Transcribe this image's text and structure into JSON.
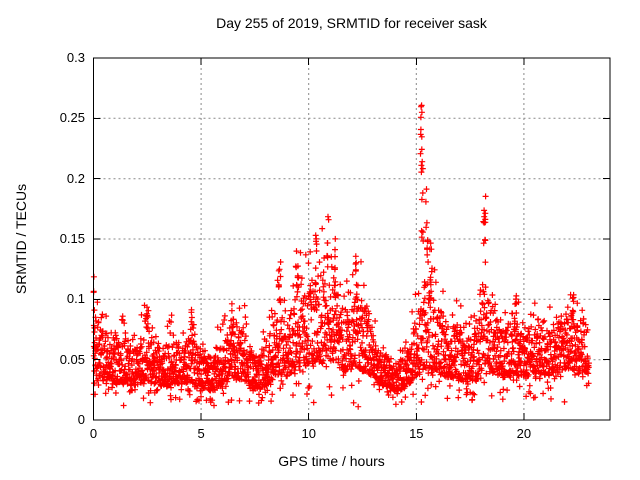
{
  "window": {
    "background": "#ffffff"
  },
  "chart_data": {
    "type": "scatter",
    "title": "Day 255 of 2019, SRMTID for receiver sask",
    "xlabel": "GPS time / hours",
    "ylabel": "SRMTID / TECUs",
    "series_name": "SRMTID",
    "xlim": [
      0,
      24
    ],
    "ylim": [
      0,
      0.3
    ],
    "xticks": {
      "values": [
        0,
        5,
        10,
        15,
        20
      ],
      "labels": [
        "0",
        "5",
        "10",
        "15",
        "20"
      ]
    },
    "yticks": {
      "values": [
        0,
        0.05,
        0.1,
        0.15,
        0.2,
        0.25,
        0.3
      ],
      "labels": [
        "0",
        "0.05",
        "0.1",
        "0.15",
        "0.2",
        "0.25",
        "0.3"
      ]
    },
    "grid": {
      "on": true,
      "style": "dashed",
      "color": "#888888",
      "dash": "2,3"
    },
    "axes_color": "#000000",
    "marker": {
      "shape": "plus",
      "color": "#ff0000",
      "size": 7,
      "stroke_width": 1.2
    },
    "legend": "none",
    "notable_peaks": [
      {
        "t": 0.05,
        "y": 0.125
      },
      {
        "t": 2.5,
        "y": 0.105
      },
      {
        "t": 6.45,
        "y": 0.105
      },
      {
        "t": 8.65,
        "y": 0.132
      },
      {
        "t": 9.45,
        "y": 0.15
      },
      {
        "t": 10.35,
        "y": 0.158
      },
      {
        "t": 10.9,
        "y": 0.172
      },
      {
        "t": 11.2,
        "y": 0.152
      },
      {
        "t": 12.2,
        "y": 0.138
      },
      {
        "t": 15.22,
        "y": 0.278
      },
      {
        "t": 15.5,
        "y": 0.192
      },
      {
        "t": 18.17,
        "y": 0.186
      },
      {
        "t": 22.25,
        "y": 0.115
      }
    ],
    "scatter_model": {
      "seed": 1337,
      "t_start": 0.004,
      "t_end": 23.02,
      "dt": 0.008,
      "bulk_power": 1.5,
      "tail": {
        "prob": 0.16,
        "power": 1.9
      },
      "below": {
        "prob": 0.07,
        "power": 2.0,
        "floor": 0.014
      },
      "baseline": [
        [
          0.0,
          0.035,
          0.1
        ],
        [
          0.2,
          0.034,
          0.09
        ],
        [
          0.5,
          0.032,
          0.07
        ],
        [
          0.8,
          0.033,
          0.078
        ],
        [
          1.1,
          0.03,
          0.062
        ],
        [
          1.4,
          0.031,
          0.072
        ],
        [
          1.8,
          0.028,
          0.058
        ],
        [
          2.1,
          0.03,
          0.064
        ],
        [
          2.45,
          0.034,
          0.085
        ],
        [
          2.8,
          0.03,
          0.068
        ],
        [
          3.1,
          0.028,
          0.058
        ],
        [
          3.6,
          0.031,
          0.072
        ],
        [
          4.1,
          0.03,
          0.062
        ],
        [
          4.5,
          0.032,
          0.078
        ],
        [
          5.0,
          0.027,
          0.058
        ],
        [
          5.5,
          0.024,
          0.052
        ],
        [
          6.0,
          0.03,
          0.068
        ],
        [
          6.5,
          0.034,
          0.082
        ],
        [
          7.0,
          0.032,
          0.078
        ],
        [
          7.5,
          0.025,
          0.054
        ],
        [
          8.0,
          0.028,
          0.062
        ],
        [
          8.6,
          0.038,
          0.095
        ],
        [
          9.0,
          0.036,
          0.075
        ],
        [
          9.45,
          0.044,
          0.115
        ],
        [
          9.8,
          0.044,
          0.11
        ],
        [
          10.35,
          0.048,
          0.12
        ],
        [
          10.9,
          0.05,
          0.125
        ],
        [
          11.25,
          0.046,
          0.115
        ],
        [
          11.7,
          0.04,
          0.095
        ],
        [
          12.2,
          0.044,
          0.105
        ],
        [
          12.7,
          0.04,
          0.095
        ],
        [
          13.2,
          0.03,
          0.058
        ],
        [
          13.7,
          0.027,
          0.052
        ],
        [
          14.2,
          0.024,
          0.048
        ],
        [
          14.7,
          0.03,
          0.062
        ],
        [
          15.2,
          0.04,
          0.11
        ],
        [
          15.6,
          0.044,
          0.12
        ],
        [
          16.0,
          0.04,
          0.095
        ],
        [
          16.5,
          0.035,
          0.078
        ],
        [
          17.0,
          0.034,
          0.08
        ],
        [
          17.5,
          0.03,
          0.066
        ],
        [
          18.0,
          0.04,
          0.1
        ],
        [
          18.25,
          0.048,
          0.12
        ],
        [
          18.6,
          0.04,
          0.092
        ],
        [
          19.0,
          0.035,
          0.075
        ],
        [
          19.5,
          0.038,
          0.085
        ],
        [
          20.0,
          0.035,
          0.076
        ],
        [
          20.5,
          0.038,
          0.08
        ],
        [
          21.0,
          0.037,
          0.076
        ],
        [
          21.5,
          0.039,
          0.082
        ],
        [
          22.0,
          0.04,
          0.088
        ],
        [
          22.4,
          0.042,
          0.088
        ],
        [
          22.8,
          0.04,
          0.082
        ],
        [
          23.02,
          0.038,
          0.075
        ]
      ],
      "envelope": [
        [
          0.0,
          0.125
        ],
        [
          0.25,
          0.095
        ],
        [
          0.6,
          0.1
        ],
        [
          1.0,
          0.072
        ],
        [
          1.35,
          0.088
        ],
        [
          1.75,
          0.065
        ],
        [
          2.1,
          0.078
        ],
        [
          2.45,
          0.105
        ],
        [
          2.8,
          0.08
        ],
        [
          3.1,
          0.068
        ],
        [
          3.6,
          0.088
        ],
        [
          4.1,
          0.075
        ],
        [
          4.5,
          0.095
        ],
        [
          5.0,
          0.065
        ],
        [
          5.5,
          0.058
        ],
        [
          6.0,
          0.095
        ],
        [
          6.45,
          0.105
        ],
        [
          7.0,
          0.098
        ],
        [
          7.5,
          0.06
        ],
        [
          8.0,
          0.078
        ],
        [
          8.65,
          0.132
        ],
        [
          9.0,
          0.092
        ],
        [
          9.45,
          0.15
        ],
        [
          9.8,
          0.148
        ],
        [
          10.35,
          0.158
        ],
        [
          10.9,
          0.172
        ],
        [
          11.25,
          0.152
        ],
        [
          11.7,
          0.112
        ],
        [
          12.2,
          0.138
        ],
        [
          12.7,
          0.125
        ],
        [
          13.2,
          0.07
        ],
        [
          13.7,
          0.06
        ],
        [
          14.2,
          0.055
        ],
        [
          14.7,
          0.08
        ],
        [
          15.05,
          0.12
        ],
        [
          15.25,
          0.15
        ],
        [
          15.6,
          0.155
        ],
        [
          16.0,
          0.13
        ],
        [
          16.4,
          0.105
        ],
        [
          17.0,
          0.1
        ],
        [
          17.5,
          0.088
        ],
        [
          18.0,
          0.12
        ],
        [
          18.25,
          0.15
        ],
        [
          18.6,
          0.105
        ],
        [
          19.0,
          0.092
        ],
        [
          19.5,
          0.105
        ],
        [
          20.0,
          0.092
        ],
        [
          20.4,
          0.1
        ],
        [
          20.8,
          0.09
        ],
        [
          21.3,
          0.096
        ],
        [
          21.8,
          0.092
        ],
        [
          22.2,
          0.115
        ],
        [
          22.6,
          0.106
        ],
        [
          23.02,
          0.085
        ]
      ],
      "spikes": [
        [
          15.22,
          0.04,
          0.22,
          0.278,
          9
        ],
        [
          15.26,
          0.05,
          0.145,
          0.225,
          9
        ],
        [
          15.5,
          0.06,
          0.13,
          0.192,
          9
        ],
        [
          15.65,
          0.06,
          0.1,
          0.15,
          8
        ],
        [
          18.17,
          0.06,
          0.13,
          0.186,
          12
        ],
        [
          10.9,
          0.03,
          0.12,
          0.172,
          6
        ],
        [
          9.45,
          0.05,
          0.1,
          0.15,
          8
        ],
        [
          10.35,
          0.05,
          0.1,
          0.158,
          7
        ],
        [
          11.2,
          0.05,
          0.1,
          0.152,
          7
        ],
        [
          12.2,
          0.04,
          0.1,
          0.138,
          6
        ],
        [
          8.65,
          0.05,
          0.085,
          0.132,
          8
        ],
        [
          0.06,
          0.06,
          0.055,
          0.125,
          12
        ],
        [
          2.5,
          0.06,
          0.07,
          0.105,
          8
        ],
        [
          6.45,
          0.06,
          0.07,
          0.105,
          8
        ],
        [
          22.25,
          0.06,
          0.08,
          0.115,
          7
        ],
        [
          19.6,
          0.05,
          0.07,
          0.103,
          6
        ],
        [
          4.55,
          0.04,
          0.065,
          0.095,
          6
        ]
      ],
      "outliers": [
        [
          1.4,
          0.012
        ],
        [
          3.6,
          0.017
        ],
        [
          5.6,
          0.012
        ],
        [
          12.3,
          0.011
        ],
        [
          14.05,
          0.013
        ],
        [
          17.7,
          0.021
        ],
        [
          20.3,
          0.022
        ]
      ]
    }
  }
}
